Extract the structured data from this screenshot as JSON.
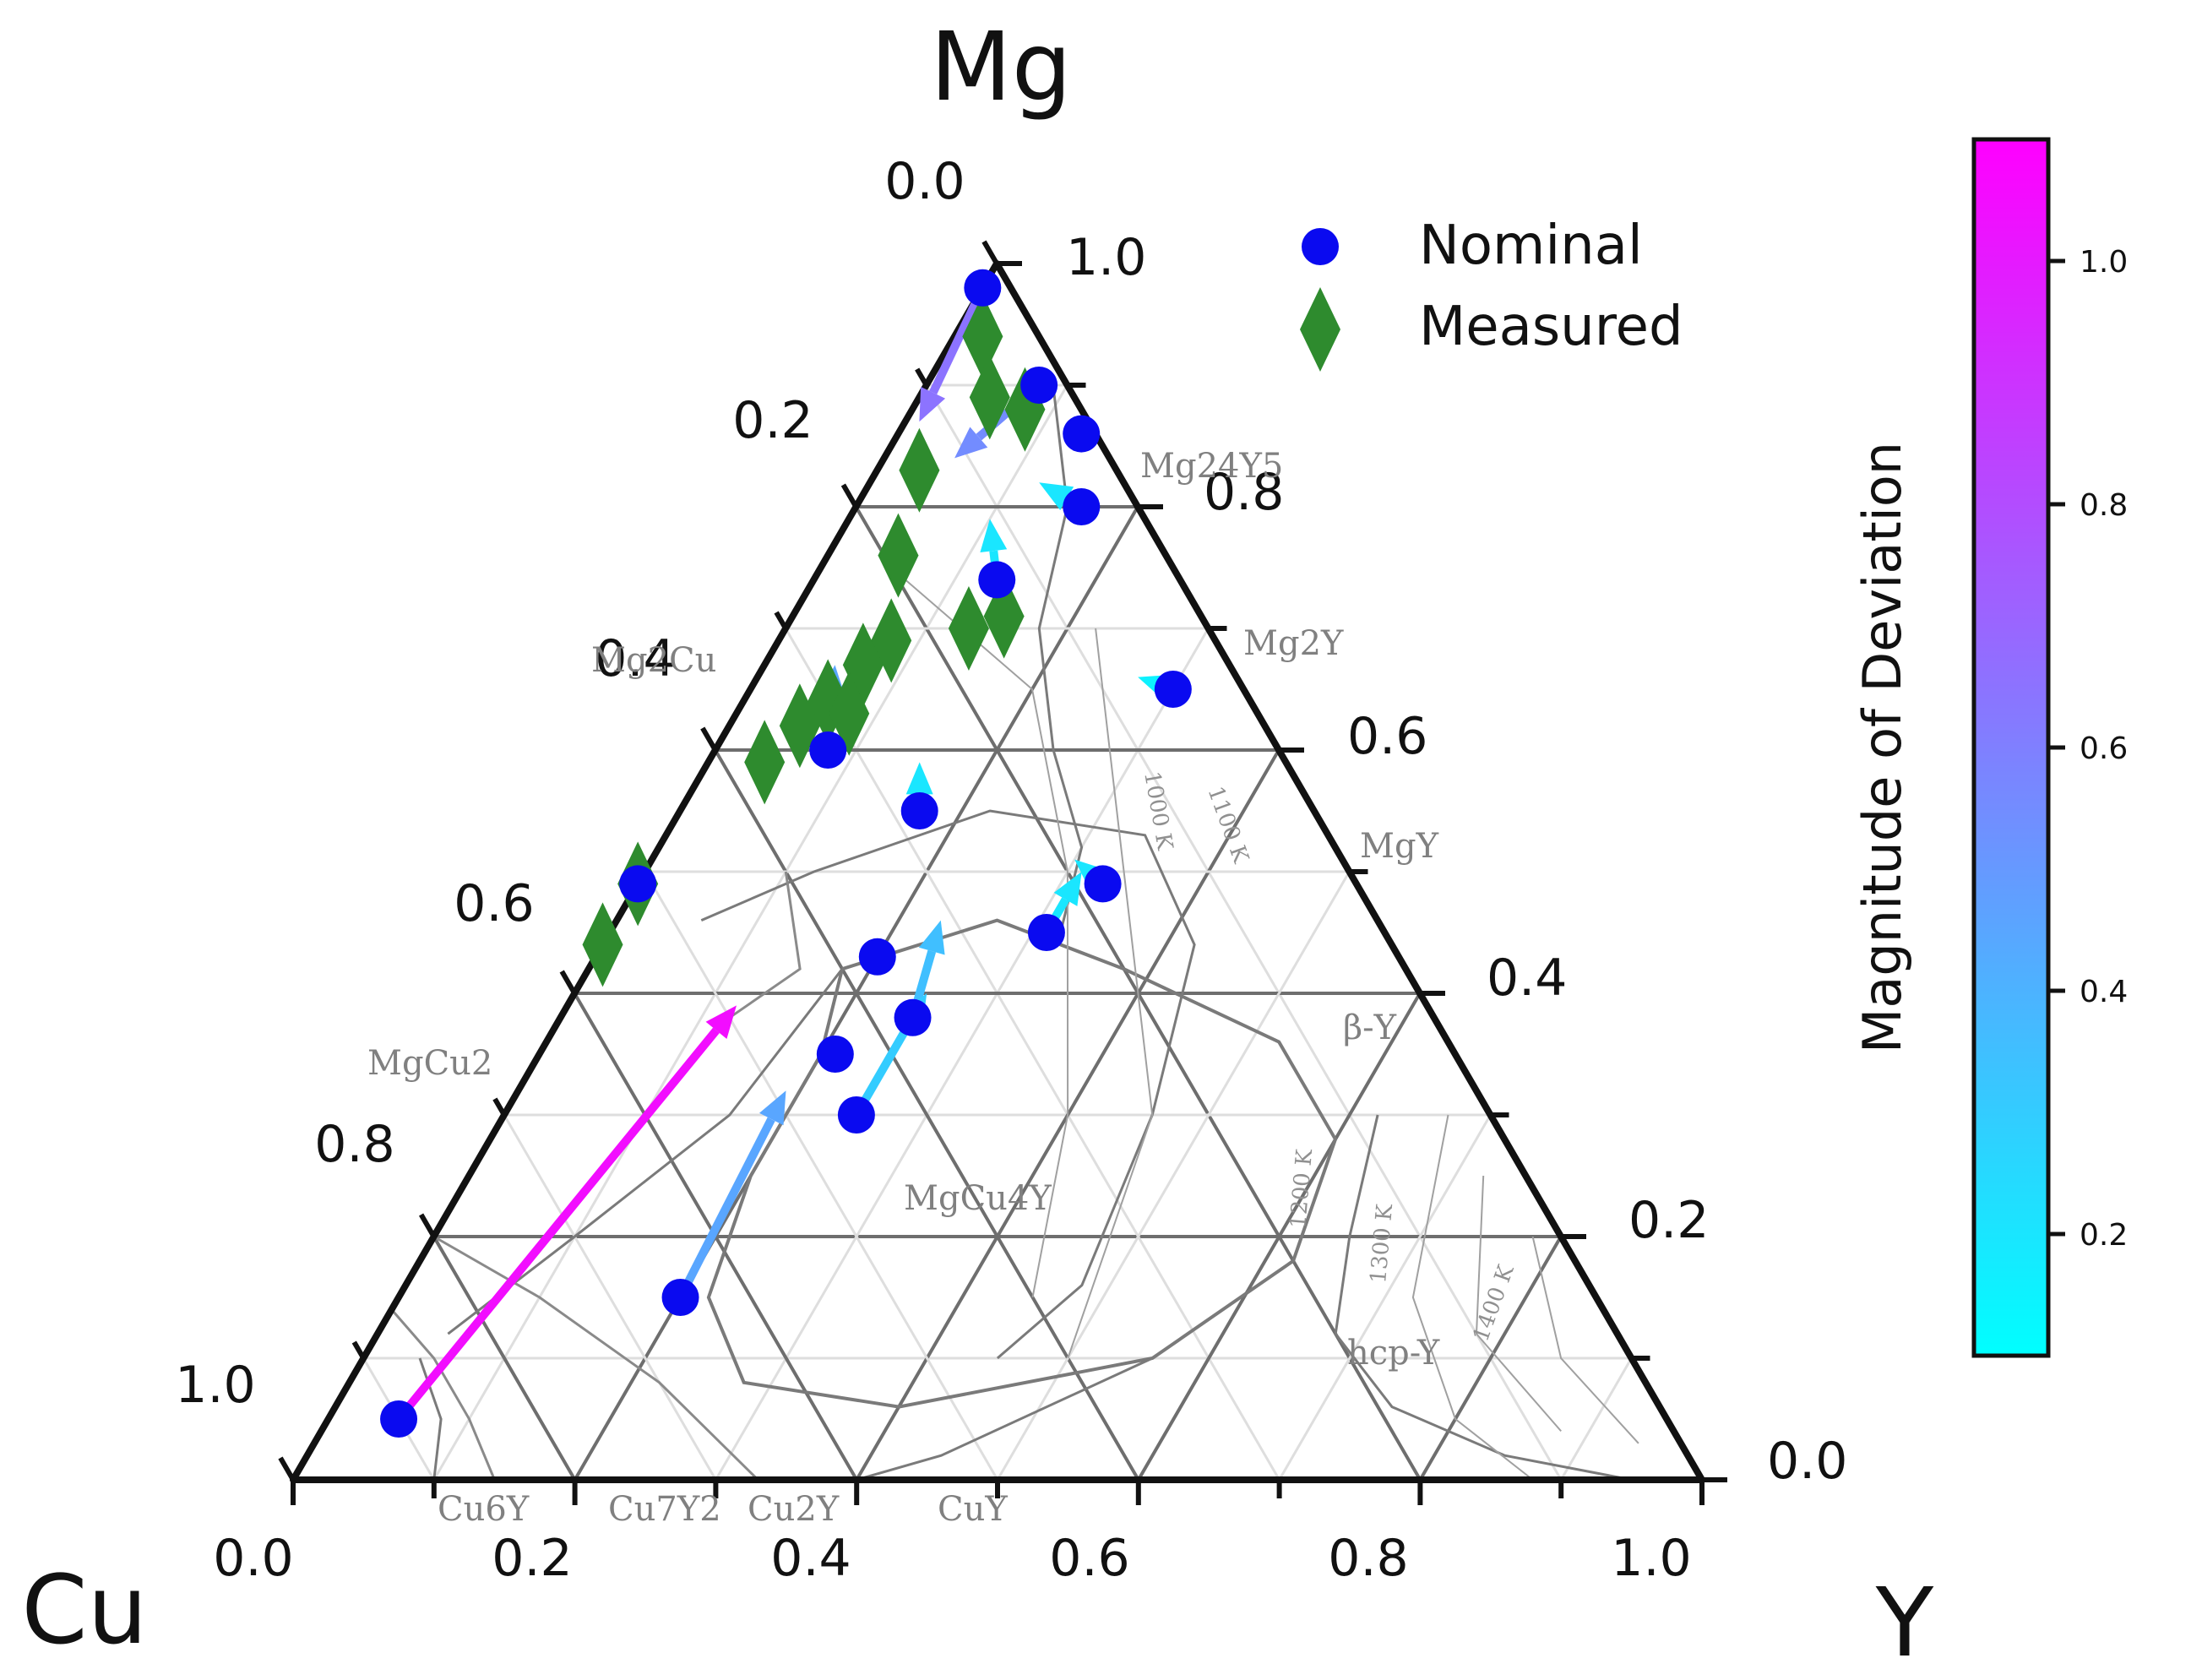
{
  "chart_data": {
    "type": "scatter",
    "subtype": "ternary",
    "vertices": {
      "top": "Mg",
      "left": "Cu",
      "right": "Y"
    },
    "ticks": {
      "bottom": [
        "0.0",
        "0.2",
        "0.4",
        "0.6",
        "0.8",
        "1.0"
      ],
      "left": [
        "0.0",
        "0.2",
        "0.4",
        "0.6",
        "0.8",
        "1.0"
      ],
      "right": [
        "1.0",
        "0.8",
        "0.6",
        "0.4",
        "0.2",
        "0.0"
      ]
    },
    "legend": [
      {
        "label": "Nominal",
        "marker": "circle",
        "color": "#0a0af0"
      },
      {
        "label": "Measured",
        "marker": "diamond",
        "color": "#2e8b2e"
      }
    ],
    "colorbar": {
      "label": "Magnitude of Deviation",
      "range": [
        0.1,
        1.1
      ],
      "ticks": [
        "0.2",
        "0.4",
        "0.6",
        "0.8",
        "1.0"
      ],
      "tick_values": [
        0.2,
        0.4,
        0.6,
        0.8,
        1.0
      ],
      "colors": [
        "#00ffff",
        "#ff00ff"
      ]
    },
    "phase_labels": [
      {
        "text": "Mg24Y5",
        "pos": [
          0.875,
          0.125
        ]
      },
      {
        "text": "Mg2Y",
        "pos": [
          0.667,
          0.333
        ]
      },
      {
        "text": "MgY",
        "pos": [
          0.5,
          0.5
        ]
      },
      {
        "text": "Mg2Cu",
        "pos": [
          0.667,
          0.0
        ]
      },
      {
        "text": "MgCu2",
        "pos": [
          0.333,
          0.0
        ]
      },
      {
        "text": "MgCu4Y",
        "pos": [
          0.167,
          0.167
        ]
      },
      {
        "text": "Cu6Y",
        "pos": [
          0.0,
          0.143
        ]
      },
      {
        "text": "Cu7Y2",
        "pos": [
          0.0,
          0.222
        ]
      },
      {
        "text": "Cu2Y",
        "pos": [
          0.0,
          0.333
        ]
      },
      {
        "text": "CuY",
        "pos": [
          0.0,
          0.5
        ]
      },
      {
        "text": "β-Y",
        "pos": [
          0.35,
          0.6
        ]
      },
      {
        "text": "hcp-Y",
        "pos": [
          0.08,
          0.8
        ]
      }
    ],
    "temperature_labels": [
      "1000 K",
      "1100 K",
      "1200 K",
      "1300 K",
      "1400 K"
    ],
    "nominal": [
      [
        0.98,
        0.0
      ],
      [
        0.9,
        0.08
      ],
      [
        0.86,
        0.13
      ],
      [
        0.8,
        0.16
      ],
      [
        0.74,
        0.13
      ],
      [
        0.65,
        0.3
      ],
      [
        0.6,
        0.08
      ],
      [
        0.55,
        0.17
      ],
      [
        0.49,
        0.33
      ],
      [
        0.49,
        0.0
      ],
      [
        0.43,
        0.2
      ],
      [
        0.45,
        0.31
      ],
      [
        0.38,
        0.25
      ],
      [
        0.35,
        0.21
      ],
      [
        0.3,
        0.25
      ],
      [
        0.15,
        0.2
      ],
      [
        0.05,
        0.05
      ]
    ],
    "measured": [
      [
        0.94,
        0.02
      ],
      [
        0.88,
        0.08
      ],
      [
        0.89,
        0.05
      ],
      [
        0.83,
        0.03
      ],
      [
        0.76,
        0.05
      ],
      [
        0.71,
        0.15
      ],
      [
        0.7,
        0.13
      ],
      [
        0.69,
        0.08
      ],
      [
        0.67,
        0.07
      ],
      [
        0.64,
        0.06
      ],
      [
        0.63,
        0.08
      ],
      [
        0.62,
        0.05
      ],
      [
        0.59,
        0.04
      ],
      [
        0.49,
        0.0
      ],
      [
        0.44,
        0.0
      ]
    ],
    "arrows": [
      {
        "from": [
          0.98,
          0.0
        ],
        "to": [
          0.87,
          0.01
        ],
        "magnitude": 0.65
      },
      {
        "from": [
          0.9,
          0.08
        ],
        "to": [
          0.84,
          0.05
        ],
        "magnitude": 0.55
      },
      {
        "from": [
          0.8,
          0.16
        ],
        "to": [
          0.82,
          0.12
        ],
        "magnitude": 0.2
      },
      {
        "from": [
          0.74,
          0.13
        ],
        "to": [
          0.79,
          0.1
        ],
        "magnitude": 0.2
      },
      {
        "from": [
          0.65,
          0.3
        ],
        "to": [
          0.66,
          0.27
        ],
        "magnitude": 0.15
      },
      {
        "from": [
          0.6,
          0.08
        ],
        "to": [
          0.67,
          0.05
        ],
        "magnitude": 0.45
      },
      {
        "from": [
          0.55,
          0.17
        ],
        "to": [
          0.59,
          0.15
        ],
        "magnitude": 0.2
      },
      {
        "from": [
          0.49,
          0.33
        ],
        "to": [
          0.51,
          0.3
        ],
        "magnitude": 0.2
      },
      {
        "from": [
          0.45,
          0.31
        ],
        "to": [
          0.5,
          0.31
        ],
        "magnitude": 0.2
      },
      {
        "from": [
          0.38,
          0.25
        ],
        "to": [
          0.46,
          0.23
        ],
        "magnitude": 0.35
      },
      {
        "from": [
          0.3,
          0.25
        ],
        "to": [
          0.4,
          0.25
        ],
        "magnitude": 0.3
      },
      {
        "from": [
          0.15,
          0.2
        ],
        "to": [
          0.32,
          0.19
        ],
        "magnitude": 0.45
      },
      {
        "from": [
          0.05,
          0.05
        ],
        "to": [
          0.39,
          0.12
        ],
        "magnitude": 1.05
      }
    ]
  }
}
